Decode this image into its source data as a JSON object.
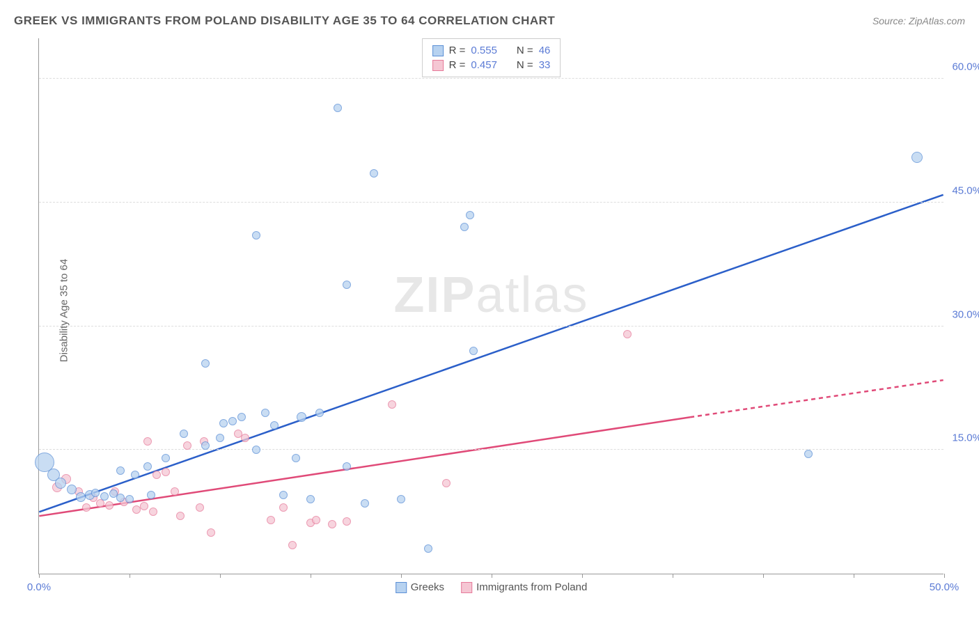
{
  "title": "GREEK VS IMMIGRANTS FROM POLAND DISABILITY AGE 35 TO 64 CORRELATION CHART",
  "source": "Source: ZipAtlas.com",
  "ylabel": "Disability Age 35 to 64",
  "watermark_a": "ZIP",
  "watermark_b": "atlas",
  "chart": {
    "type": "scatter+trend",
    "xlim": [
      0,
      50
    ],
    "ylim": [
      0,
      65
    ],
    "xtick_positions": [
      0,
      5,
      10,
      15,
      20,
      25,
      30,
      35,
      40,
      45,
      50
    ],
    "xtick_labels": {
      "0": "0.0%",
      "50": "50.0%"
    },
    "ytick_positions": [
      15,
      30,
      45,
      60
    ],
    "ytick_labels": {
      "15": "15.0%",
      "30": "30.0%",
      "45": "45.0%",
      "60": "60.0%"
    },
    "background_color": "#ffffff",
    "grid_color": "#dddddd",
    "axis_color": "#999999",
    "tick_label_color": "#5b7bd5"
  },
  "series": {
    "greek": {
      "label": "Greeks",
      "fill": "#b7d2f0",
      "stroke": "#5b8fd6",
      "trend_color": "#2b5fc9",
      "trend": {
        "x1": 0,
        "y1": 7.5,
        "x2": 50,
        "y2": 46
      },
      "R": "0.555",
      "N": "46",
      "points": [
        {
          "x": 0.3,
          "y": 13.5,
          "r": 14
        },
        {
          "x": 0.8,
          "y": 12.0,
          "r": 9
        },
        {
          "x": 1.2,
          "y": 11.0,
          "r": 8
        },
        {
          "x": 1.8,
          "y": 10.2,
          "r": 7
        },
        {
          "x": 2.3,
          "y": 9.3,
          "r": 7
        },
        {
          "x": 2.8,
          "y": 9.5,
          "r": 7
        },
        {
          "x": 3.1,
          "y": 9.8,
          "r": 6
        },
        {
          "x": 3.6,
          "y": 9.4,
          "r": 6
        },
        {
          "x": 4.1,
          "y": 9.7,
          "r": 6
        },
        {
          "x": 4.5,
          "y": 9.2,
          "r": 6
        },
        {
          "x": 5.0,
          "y": 9.0,
          "r": 6
        },
        {
          "x": 4.5,
          "y": 12.5,
          "r": 6
        },
        {
          "x": 5.3,
          "y": 12.0,
          "r": 6
        },
        {
          "x": 6.0,
          "y": 13.0,
          "r": 6
        },
        {
          "x": 6.2,
          "y": 9.5,
          "r": 6
        },
        {
          "x": 7.0,
          "y": 14.0,
          "r": 6
        },
        {
          "x": 8.0,
          "y": 17.0,
          "r": 6
        },
        {
          "x": 9.2,
          "y": 15.5,
          "r": 6
        },
        {
          "x": 9.2,
          "y": 25.5,
          "r": 6
        },
        {
          "x": 10.0,
          "y": 16.5,
          "r": 6
        },
        {
          "x": 10.2,
          "y": 18.2,
          "r": 6
        },
        {
          "x": 10.7,
          "y": 18.5,
          "r": 6
        },
        {
          "x": 11.2,
          "y": 19.0,
          "r": 6
        },
        {
          "x": 12.0,
          "y": 15.0,
          "r": 6
        },
        {
          "x": 12.0,
          "y": 41.0,
          "r": 6
        },
        {
          "x": 12.5,
          "y": 19.5,
          "r": 6
        },
        {
          "x": 13.5,
          "y": 9.5,
          "r": 6
        },
        {
          "x": 13.0,
          "y": 18.0,
          "r": 6
        },
        {
          "x": 14.2,
          "y": 14.0,
          "r": 6
        },
        {
          "x": 14.5,
          "y": 19.0,
          "r": 7
        },
        {
          "x": 15.0,
          "y": 9.0,
          "r": 6
        },
        {
          "x": 15.5,
          "y": 19.5,
          "r": 6
        },
        {
          "x": 16.5,
          "y": 56.5,
          "r": 6
        },
        {
          "x": 17.0,
          "y": 35.0,
          "r": 6
        },
        {
          "x": 17.0,
          "y": 13.0,
          "r": 6
        },
        {
          "x": 18.0,
          "y": 8.5,
          "r": 6
        },
        {
          "x": 18.5,
          "y": 48.5,
          "r": 6
        },
        {
          "x": 20.0,
          "y": 9.0,
          "r": 6
        },
        {
          "x": 21.5,
          "y": 3.0,
          "r": 6
        },
        {
          "x": 23.5,
          "y": 42.0,
          "r": 6
        },
        {
          "x": 23.8,
          "y": 43.5,
          "r": 6
        },
        {
          "x": 24.0,
          "y": 27.0,
          "r": 6
        },
        {
          "x": 42.5,
          "y": 14.5,
          "r": 6
        },
        {
          "x": 48.5,
          "y": 50.5,
          "r": 8
        }
      ]
    },
    "poland": {
      "label": "Immigrants from Poland",
      "fill": "#f5c6d3",
      "stroke": "#e67a9a",
      "trend_color": "#e04a78",
      "trend": {
        "x1": 0,
        "y1": 7.0,
        "x2": 36,
        "y2": 19.0
      },
      "trend_dash": {
        "x1": 36,
        "y1": 19.0,
        "x2": 50,
        "y2": 23.5
      },
      "R": "0.457",
      "N": "33",
      "points": [
        {
          "x": 1.0,
          "y": 10.5,
          "r": 7
        },
        {
          "x": 1.5,
          "y": 11.5,
          "r": 7
        },
        {
          "x": 2.2,
          "y": 10.0,
          "r": 6
        },
        {
          "x": 2.6,
          "y": 8.0,
          "r": 6
        },
        {
          "x": 3.0,
          "y": 9.2,
          "r": 6
        },
        {
          "x": 3.4,
          "y": 8.5,
          "r": 6
        },
        {
          "x": 3.9,
          "y": 8.3,
          "r": 6
        },
        {
          "x": 4.2,
          "y": 10.0,
          "r": 6
        },
        {
          "x": 4.7,
          "y": 8.7,
          "r": 6
        },
        {
          "x": 5.4,
          "y": 7.8,
          "r": 6
        },
        {
          "x": 5.8,
          "y": 8.2,
          "r": 6
        },
        {
          "x": 6.0,
          "y": 16.0,
          "r": 6
        },
        {
          "x": 6.3,
          "y": 7.5,
          "r": 6
        },
        {
          "x": 6.5,
          "y": 12.0,
          "r": 6
        },
        {
          "x": 7.0,
          "y": 12.3,
          "r": 6
        },
        {
          "x": 7.5,
          "y": 10.0,
          "r": 6
        },
        {
          "x": 7.8,
          "y": 7.0,
          "r": 6
        },
        {
          "x": 8.2,
          "y": 15.5,
          "r": 6
        },
        {
          "x": 8.9,
          "y": 8.0,
          "r": 6
        },
        {
          "x": 9.1,
          "y": 16.0,
          "r": 6
        },
        {
          "x": 9.5,
          "y": 5.0,
          "r": 6
        },
        {
          "x": 11.0,
          "y": 17.0,
          "r": 6
        },
        {
          "x": 11.4,
          "y": 16.5,
          "r": 6
        },
        {
          "x": 12.8,
          "y": 6.5,
          "r": 6
        },
        {
          "x": 13.5,
          "y": 8.0,
          "r": 6
        },
        {
          "x": 14.0,
          "y": 3.5,
          "r": 6
        },
        {
          "x": 15.0,
          "y": 6.2,
          "r": 6
        },
        {
          "x": 15.3,
          "y": 6.5,
          "r": 6
        },
        {
          "x": 16.2,
          "y": 6.0,
          "r": 6
        },
        {
          "x": 17.0,
          "y": 6.3,
          "r": 6
        },
        {
          "x": 19.5,
          "y": 20.5,
          "r": 6
        },
        {
          "x": 22.5,
          "y": 11.0,
          "r": 6
        },
        {
          "x": 32.5,
          "y": 29.0,
          "r": 6
        }
      ]
    }
  },
  "legend_labels": {
    "R": "R =",
    "N": "N ="
  }
}
